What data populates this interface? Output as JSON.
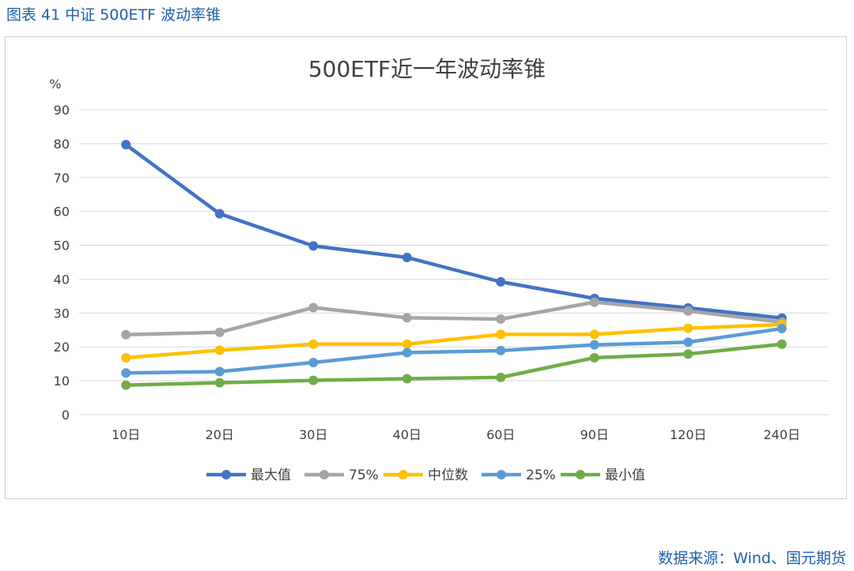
{
  "caption": "图表 41  中证 500ETF 波动率锥",
  "source": "数据来源：Wind、国元期货",
  "chart_data": {
    "type": "line",
    "title": "500ETF近一年波动率锥",
    "ylabel": "%",
    "xlabel": "",
    "ylim": [
      0,
      90
    ],
    "yticks": [
      0,
      10,
      20,
      30,
      40,
      50,
      60,
      70,
      80,
      90
    ],
    "categories": [
      "10日",
      "20日",
      "30日",
      "40日",
      "60日",
      "90日",
      "120日",
      "240日"
    ],
    "grid": true,
    "legend_position": "bottom",
    "series": [
      {
        "name": "最大值",
        "color": "#4472c4",
        "values": [
          79.7,
          59.3,
          49.8,
          46.4,
          39.2,
          34.3,
          31.5,
          28.5
        ]
      },
      {
        "name": "75%",
        "color": "#a5a5a5",
        "values": [
          23.6,
          24.3,
          31.6,
          28.6,
          28.2,
          33.2,
          30.6,
          27.3
        ]
      },
      {
        "name": "中位数",
        "color": "#ffc000",
        "values": [
          16.8,
          19.0,
          20.8,
          20.8,
          23.7,
          23.7,
          25.5,
          26.6
        ]
      },
      {
        "name": "25%",
        "color": "#5b9bd5",
        "values": [
          12.3,
          12.7,
          15.4,
          18.3,
          18.9,
          20.6,
          21.4,
          25.4
        ]
      },
      {
        "name": "最小值",
        "color": "#70ad47",
        "values": [
          8.7,
          9.4,
          10.1,
          10.6,
          11.0,
          16.8,
          17.9,
          20.8
        ]
      }
    ]
  }
}
